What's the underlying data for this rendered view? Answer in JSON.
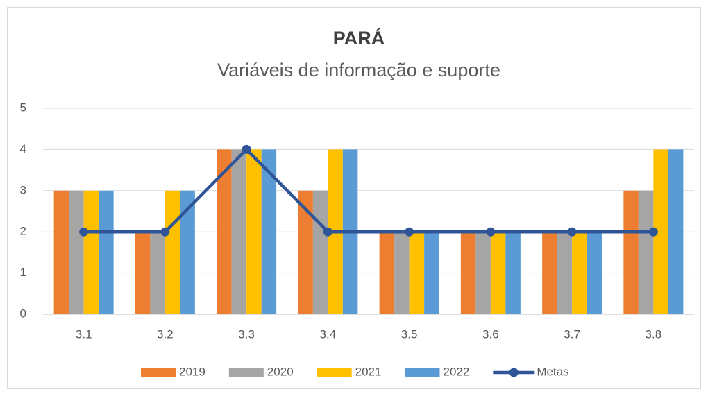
{
  "chart_data": {
    "type": "bar",
    "title": "PARÁ",
    "subtitle": "Variáveis de informação e suporte",
    "categories": [
      "3.1",
      "3.2",
      "3.3",
      "3.4",
      "3.5",
      "3.6",
      "3.7",
      "3.8"
    ],
    "series": [
      {
        "name": "2019",
        "color": "#ED7D31",
        "values": [
          3,
          2,
          4,
          3,
          2,
          2,
          2,
          3
        ]
      },
      {
        "name": "2020",
        "color": "#A5A5A5",
        "values": [
          3,
          2,
          4,
          3,
          2,
          2,
          2,
          3
        ]
      },
      {
        "name": "2021",
        "color": "#FFC000",
        "values": [
          3,
          3,
          4,
          4,
          2,
          2,
          2,
          4
        ]
      },
      {
        "name": "2022",
        "color": "#5B9BD5",
        "values": [
          3,
          3,
          4,
          4,
          2,
          2,
          2,
          4
        ]
      },
      {
        "name": "Metas",
        "color": "#2F5597",
        "type": "line",
        "values": [
          2,
          2,
          4,
          2,
          2,
          2,
          2,
          2
        ]
      }
    ],
    "ylim": [
      0,
      5
    ],
    "yticks": [
      0,
      1,
      2,
      3,
      4,
      5
    ],
    "grid": true,
    "legend": "bottom"
  }
}
